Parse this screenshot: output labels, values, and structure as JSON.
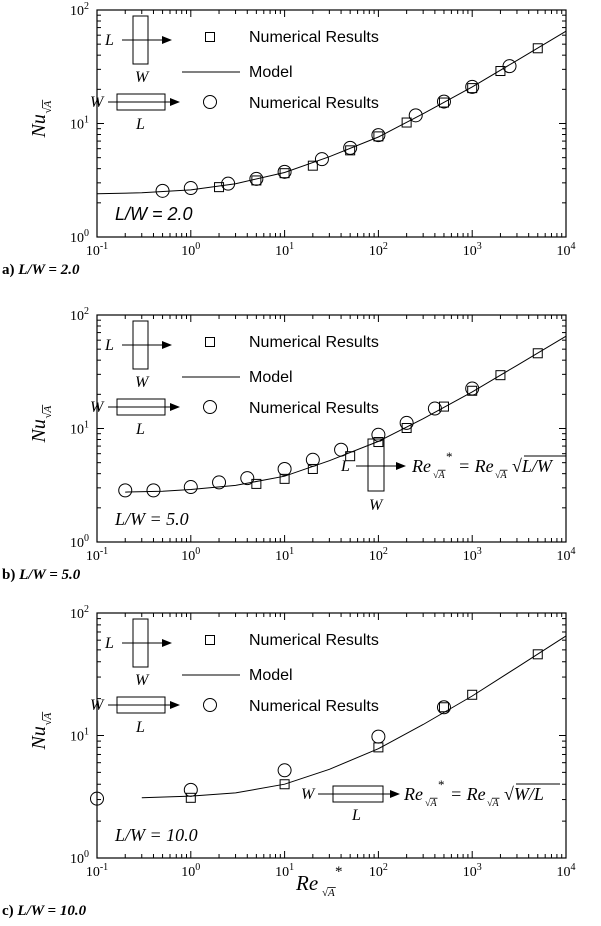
{
  "panel_labels": [
    {
      "prefix": "a)",
      "ratio": "L/W = 2.0"
    },
    {
      "prefix": "b)",
      "ratio": "L/W = 5.0"
    },
    {
      "prefix": "c)",
      "ratio": "L/W = 10.0"
    }
  ],
  "chart_data": [
    {
      "type": "scatter",
      "panel": "a",
      "xlabel": "",
      "ylabel": "Nu√A",
      "xscale": "log",
      "yscale": "log",
      "xlim": [
        0.1,
        10000
      ],
      "ylim": [
        1,
        100
      ],
      "x_tick_labels": [
        "10^-1",
        "10^0",
        "10^1",
        "10^2",
        "10^3",
        "10^4"
      ],
      "y_tick_labels": [
        "10^0",
        "10^1",
        "10^2"
      ],
      "grid": false,
      "annotation": "L/W = 2.0",
      "legend": [
        "Numerical Results",
        "Model",
        "Numerical Results"
      ],
      "series": [
        {
          "name": "Numerical Results",
          "marker": "square",
          "x": [
            2,
            5,
            10,
            20,
            50,
            100,
            200,
            500,
            1000,
            2000,
            5000
          ],
          "y": [
            2.75,
            3.15,
            3.65,
            4.25,
            5.8,
            7.7,
            10.2,
            15.3,
            20.5,
            29,
            46
          ]
        },
        {
          "name": "Model",
          "marker": "line",
          "x": [
            0.1,
            0.3,
            1,
            3,
            10,
            30,
            100,
            300,
            1000,
            3000,
            10000
          ],
          "y": [
            2.4,
            2.45,
            2.6,
            2.95,
            3.7,
            5.1,
            7.6,
            12.2,
            21,
            36,
            65
          ]
        },
        {
          "name": "Numerical Results",
          "marker": "circle",
          "x": [
            0.5,
            1,
            2.5,
            5,
            10,
            25,
            50,
            100,
            250,
            500,
            1000,
            2500
          ],
          "y": [
            2.55,
            2.7,
            2.95,
            3.25,
            3.75,
            4.85,
            6.1,
            7.9,
            11.8,
            15.6,
            21,
            32
          ]
        }
      ]
    },
    {
      "type": "scatter",
      "panel": "b",
      "xlabel": "",
      "ylabel": "Nu√A",
      "xscale": "log",
      "yscale": "log",
      "xlim": [
        0.1,
        10000
      ],
      "ylim": [
        1,
        100
      ],
      "x_tick_labels": [
        "10^-1",
        "10^0",
        "10^1",
        "10^2",
        "10^3",
        "10^4"
      ],
      "y_tick_labels": [
        "10^0",
        "10^1",
        "10^2"
      ],
      "grid": false,
      "annotation": "L/W = 5.0",
      "inset_formula": "Re√A* = Re√A √(L/W)",
      "legend": [
        "Numerical Results",
        "Model",
        "Numerical Results"
      ],
      "series": [
        {
          "name": "Numerical Results",
          "marker": "square",
          "x": [
            5,
            10,
            20,
            50,
            100,
            200,
            500,
            1000,
            2000,
            5000
          ],
          "y": [
            3.25,
            3.6,
            4.4,
            5.7,
            7.6,
            10.1,
            15.6,
            21.5,
            29.5,
            46
          ]
        },
        {
          "name": "Model",
          "marker": "line",
          "x": [
            0.2,
            0.5,
            1,
            3,
            10,
            30,
            100,
            300,
            1000,
            3000,
            10000
          ],
          "y": [
            2.75,
            2.8,
            2.9,
            3.15,
            3.8,
            5.2,
            7.7,
            12.2,
            21,
            36,
            65
          ]
        },
        {
          "name": "Numerical Results",
          "marker": "circle",
          "x": [
            0.2,
            0.4,
            1,
            2,
            4,
            10,
            20,
            40,
            100,
            200,
            400,
            1000
          ],
          "y": [
            2.85,
            2.85,
            3.05,
            3.35,
            3.65,
            4.4,
            5.3,
            6.5,
            8.8,
            11.2,
            15,
            22.5
          ]
        }
      ]
    },
    {
      "type": "scatter",
      "panel": "c",
      "xlabel": "Re√A*",
      "ylabel": "Nu√A",
      "xscale": "log",
      "yscale": "log",
      "xlim": [
        0.1,
        10000
      ],
      "ylim": [
        1,
        100
      ],
      "x_tick_labels": [
        "10^-1",
        "10^0",
        "10^1",
        "10^2",
        "10^3",
        "10^4"
      ],
      "y_tick_labels": [
        "10^0",
        "10^1",
        "10^2"
      ],
      "grid": false,
      "annotation": "L/W = 10.0",
      "inset_formula": "Re√A* = Re√A √(W/L)",
      "legend": [
        "Numerical Results",
        "Model",
        "Numerical Results"
      ],
      "series": [
        {
          "name": "Numerical Results",
          "marker": "square",
          "x": [
            1,
            10,
            100,
            500,
            1000,
            5000
          ],
          "y": [
            3.1,
            4.0,
            8.0,
            17,
            21.5,
            46
          ]
        },
        {
          "name": "Model",
          "marker": "line",
          "x": [
            0.3,
            1,
            3,
            10,
            30,
            100,
            300,
            1000,
            3000,
            10000
          ],
          "y": [
            3.1,
            3.2,
            3.4,
            4.0,
            5.3,
            7.8,
            12.3,
            21,
            36,
            65
          ]
        },
        {
          "name": "Numerical Results",
          "marker": "circle",
          "x": [
            0.1,
            1,
            10,
            100,
            500
          ],
          "y": [
            3.05,
            3.6,
            5.2,
            9.8,
            17
          ]
        }
      ]
    }
  ]
}
